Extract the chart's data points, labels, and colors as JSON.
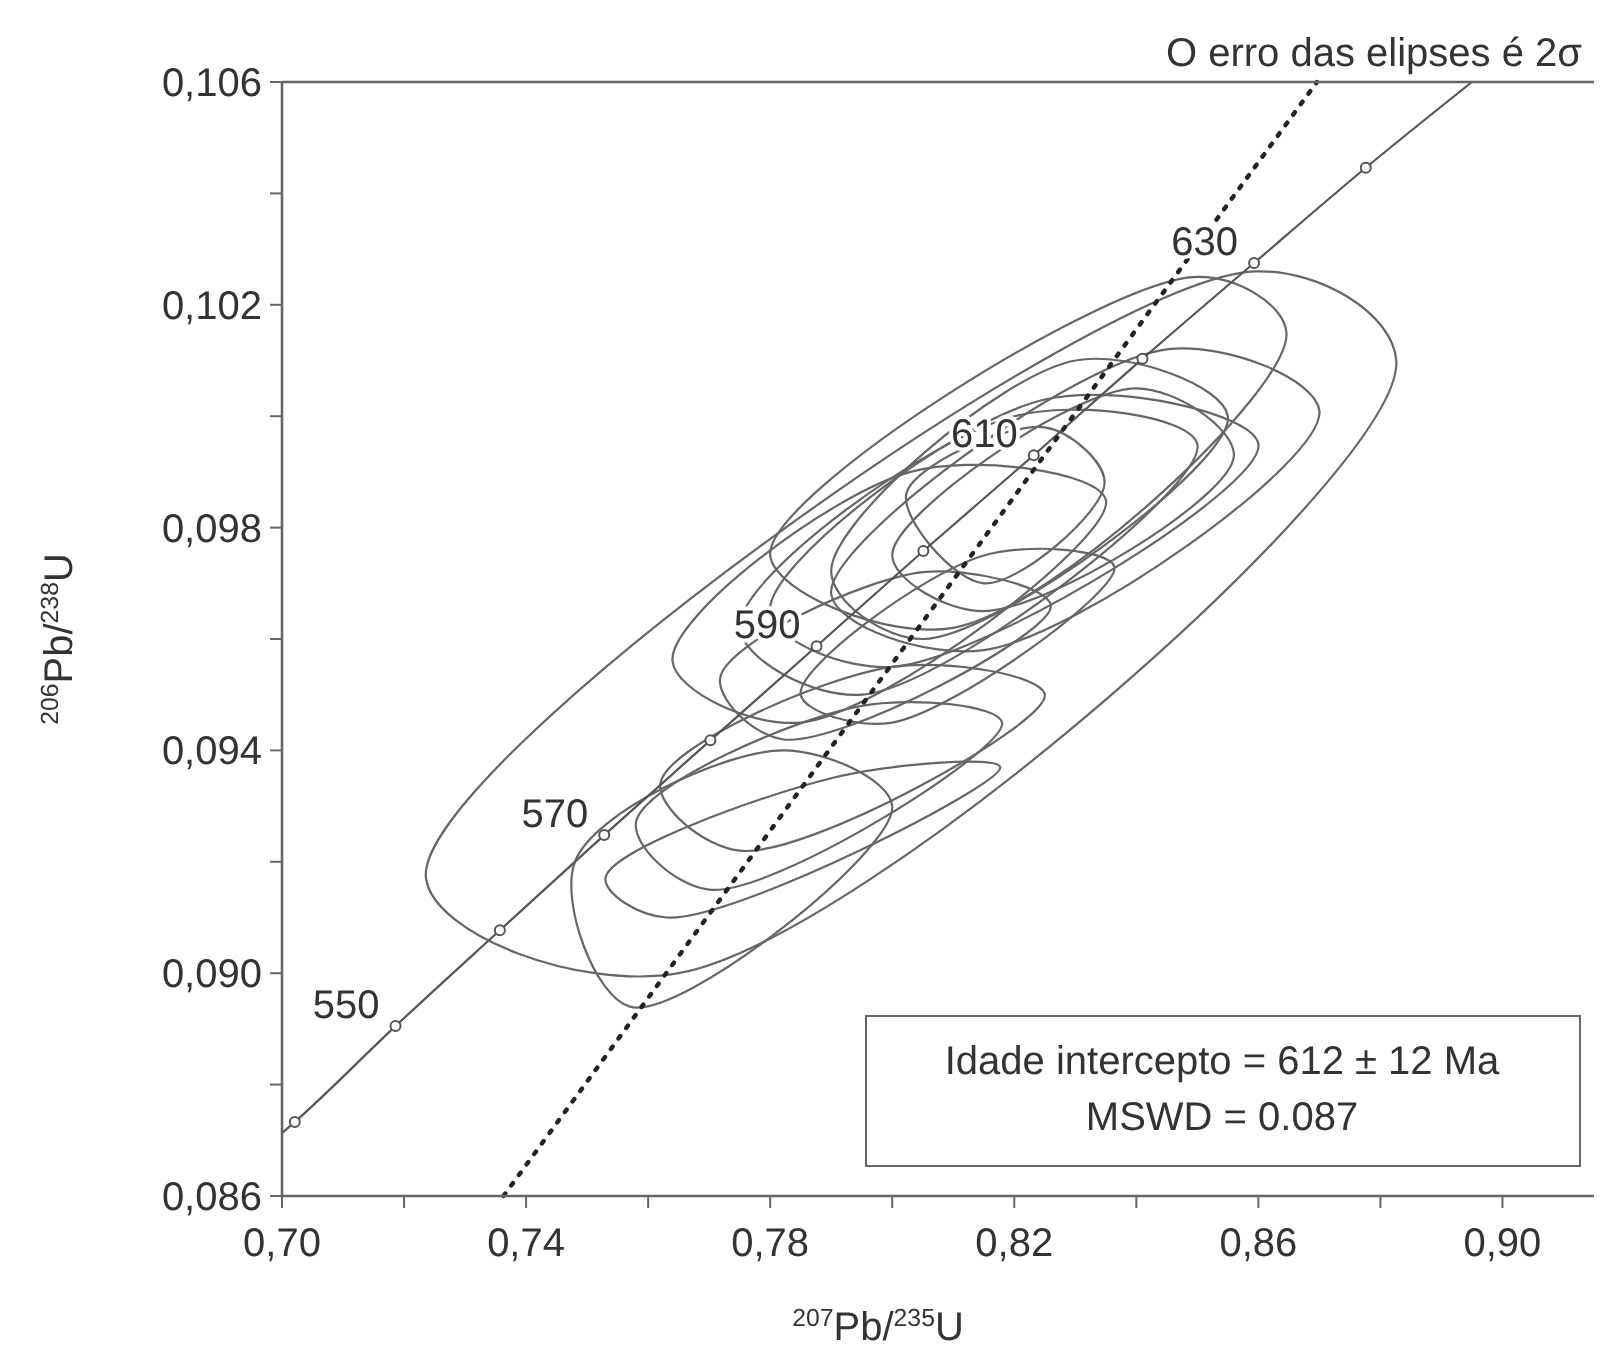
{
  "chart_data": {
    "type": "line",
    "title": "O erro das elipses é 2σ",
    "xlabel": "$^{207}$Pb/$^{235}$U",
    "ylabel": "$^{206}$Pb/$^{238}$U",
    "xlim": [
      0.7,
      0.915
    ],
    "ylim": [
      0.086,
      0.106
    ],
    "xticks": [
      {
        "value": 0.7,
        "label": "0,70"
      },
      {
        "value": 0.72,
        "label": null
      },
      {
        "value": 0.74,
        "label": "0,74"
      },
      {
        "value": 0.76,
        "label": null
      },
      {
        "value": 0.78,
        "label": "0,78"
      },
      {
        "value": 0.8,
        "label": null
      },
      {
        "value": 0.82,
        "label": "0,82"
      },
      {
        "value": 0.84,
        "label": null
      },
      {
        "value": 0.86,
        "label": "0,86"
      },
      {
        "value": 0.88,
        "label": null
      },
      {
        "value": 0.9,
        "label": "0,90"
      }
    ],
    "yticks": [
      {
        "value": 0.086,
        "label": "0,086"
      },
      {
        "value": 0.088,
        "label": null
      },
      {
        "value": 0.09,
        "label": "0,090"
      },
      {
        "value": 0.092,
        "label": null
      },
      {
        "value": 0.094,
        "label": "0,094"
      },
      {
        "value": 0.096,
        "label": null
      },
      {
        "value": 0.098,
        "label": "0,098"
      },
      {
        "value": 0.1,
        "label": null
      },
      {
        "value": 0.102,
        "label": "0,102"
      },
      {
        "value": 0.104,
        "label": null
      },
      {
        "value": 0.106,
        "label": "0,106"
      }
    ],
    "grid": false,
    "series": [
      {
        "type": "line",
        "color": "#555555",
        "marker": "none",
        "line_style": "solid",
        "x": [
          0.7,
          0.7021,
          0.7186,
          0.7357,
          0.7528,
          0.7702,
          0.7876,
          0.8051,
          0.8232,
          0.841,
          0.8593,
          0.8776,
          0.895
        ],
        "values": [
          0.08713,
          0.08733,
          0.08905,
          0.09077,
          0.09248,
          0.09418,
          0.09587,
          0.09758,
          0.0993,
          0.10103,
          0.10275,
          0.10446,
          0.106
        ]
      },
      {
        "type": "scatter",
        "color": "#555555",
        "marker": "circle",
        "x": [
          0.7021,
          0.7186,
          0.7357,
          0.7528,
          0.7702,
          0.7876,
          0.8051,
          0.8232,
          0.841,
          0.8593,
          0.8776
        ],
        "values": [
          0.08733,
          0.08905,
          0.09077,
          0.09248,
          0.09418,
          0.09587,
          0.09758,
          0.0993,
          0.10103,
          0.10275,
          0.10446
        ]
      },
      {
        "type": "line",
        "color": "#222222",
        "marker": "none",
        "line_style": "dotted",
        "x": [
          0.7363,
          0.8696
        ],
        "values": [
          0.086,
          0.106
        ]
      }
    ],
    "annotations": [
      {
        "text": "550",
        "x": 0.7186,
        "y": 0.08905
      },
      {
        "text": "570",
        "x": 0.7528,
        "y": 0.09248
      },
      {
        "text": "590",
        "x": 0.7876,
        "y": 0.09587
      },
      {
        "text": "610",
        "x": 0.8232,
        "y": 0.0993
      },
      {
        "text": "630",
        "x": 0.8593,
        "y": 0.10275
      },
      "Idade intercepto = 612 ± 12 Ma",
      "MSWD = 0.087"
    ]
  }
}
